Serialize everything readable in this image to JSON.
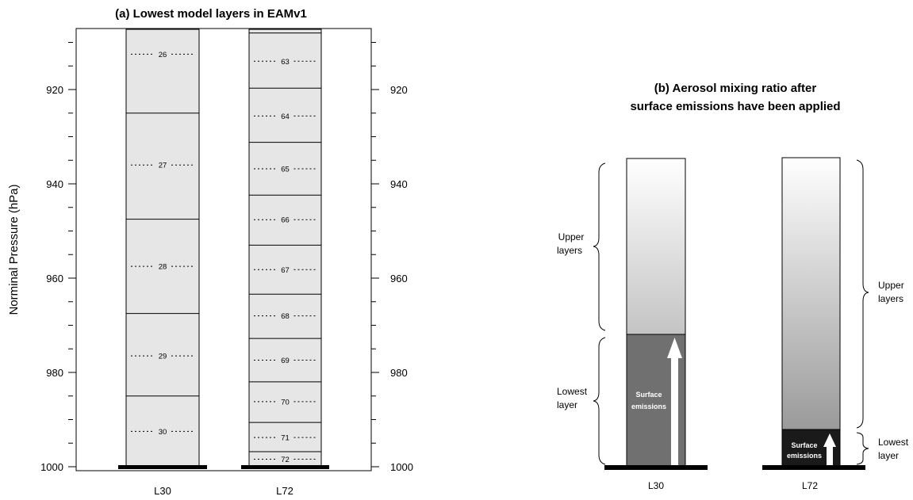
{
  "panel_a": {
    "title": "(a) Lowest model layers in EAMv1",
    "ylabel": "Norminal Pressure (hPa)",
    "y_ticks": [
      "920",
      "940",
      "960",
      "980",
      "1000"
    ],
    "columns": [
      {
        "name": "L30",
        "interfaces": [
          925,
          947.5,
          967.5,
          985
        ],
        "midpoints": [
          {
            "label": "26",
            "p": 912.5
          },
          {
            "label": "27",
            "p": 936
          },
          {
            "label": "28",
            "p": 957.5
          },
          {
            "label": "29",
            "p": 976.5
          },
          {
            "label": "30",
            "p": 992.5
          }
        ]
      },
      {
        "name": "L72",
        "interfaces": [
          908,
          919.7,
          931.2,
          942.4,
          953,
          963.4,
          972.8,
          982,
          990.6,
          996.8
        ],
        "midpoints": [
          {
            "label": "63",
            "p": 914
          },
          {
            "label": "64",
            "p": 925.6
          },
          {
            "label": "65",
            "p": 936.8
          },
          {
            "label": "66",
            "p": 947.6
          },
          {
            "label": "67",
            "p": 958.2
          },
          {
            "label": "68",
            "p": 968
          },
          {
            "label": "69",
            "p": 977.4
          },
          {
            "label": "70",
            "p": 986.2
          },
          {
            "label": "71",
            "p": 993.8
          },
          {
            "label": "72",
            "p": 998.4
          }
        ]
      }
    ],
    "colors": {
      "column_fill": "#e6e6e6"
    }
  },
  "panel_b": {
    "title_line1": "(b) Aerosol mixing ratio after",
    "title_line2": "surface emissions have been applied",
    "columns": [
      {
        "name": "L30",
        "upper_label_1": "Upper",
        "upper_label_2": "layers",
        "lower_label_1": "Lowest",
        "lower_label_2": "layer",
        "emission_1": "Surface",
        "emission_2": "emissions"
      },
      {
        "name": "L72",
        "upper_label_1": "Upper",
        "upper_label_2": "layers",
        "lower_label_1": "Lowest",
        "lower_label_2": "layer",
        "emission_1": "Surface",
        "emission_2": "emissions"
      }
    ],
    "colors": {
      "l30_lowest": "#707070",
      "l72_lowest": "#1a1a1a",
      "gradient_top": "#ffffff",
      "gradient_bottom": "#9a9a9a"
    }
  }
}
